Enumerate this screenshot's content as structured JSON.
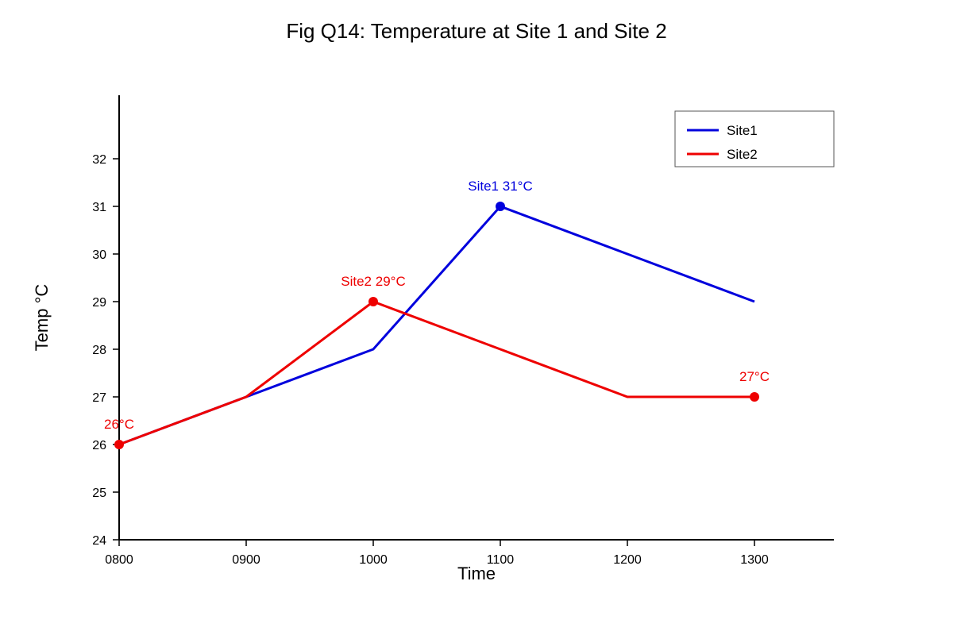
{
  "chart_data": {
    "type": "line",
    "title": "Fig Q14: Temperature at Site 1 and Site 2",
    "xlabel": "Time",
    "ylabel": "Temp °C",
    "categories": [
      "0800",
      "0900",
      "1000",
      "1100",
      "1200",
      "1300"
    ],
    "yticks": [
      24,
      25,
      26,
      27,
      28,
      29,
      30,
      31,
      32
    ],
    "ylim": [
      24,
      33
    ],
    "grid": false,
    "legend_position": "top-right",
    "series": [
      {
        "name": "Site1",
        "color": "#0000dd",
        "values": [
          26,
          27,
          28,
          31,
          30,
          29
        ],
        "markers": [
          {
            "index": 3,
            "label": "Site1 31°C"
          }
        ]
      },
      {
        "name": "Site2",
        "color": "#ee0000",
        "values": [
          26,
          27,
          29,
          28,
          27,
          27
        ],
        "markers": [
          {
            "index": 0,
            "label": "26°C"
          },
          {
            "index": 2,
            "label": "Site2 29°C"
          },
          {
            "index": 5,
            "label": "27°C"
          }
        ]
      }
    ]
  }
}
